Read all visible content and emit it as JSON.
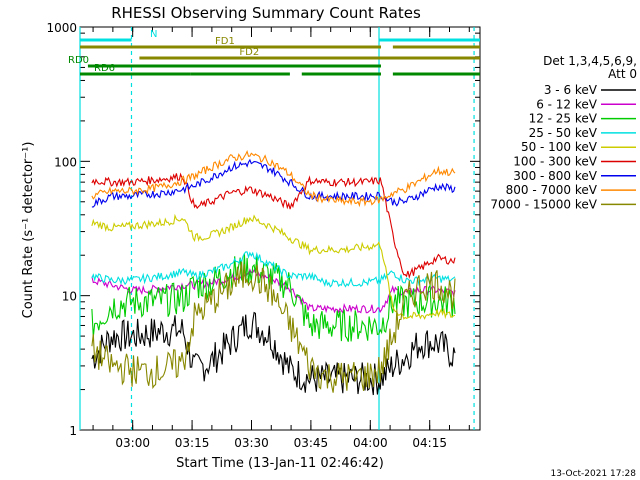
{
  "chart_data": {
    "type": "line",
    "title": "RHESSI Observing Summary Count Rates",
    "xlabel": "Start Time (13-Jan-11 02:46:42)",
    "ylabel": "Count Rate (s⁻¹ detector⁻¹)",
    "yscale": "log",
    "ylim": [
      1,
      1000
    ],
    "xlim_minutes_since_start": [
      0,
      101
    ],
    "x_ticks": [
      {
        "label": "03:00",
        "minute": 13.3
      },
      {
        "label": "03:15",
        "minute": 28.3
      },
      {
        "label": "03:30",
        "minute": 43.3
      },
      {
        "label": "03:45",
        "minute": 58.3
      },
      {
        "label": "04:00",
        "minute": 73.3
      },
      {
        "label": "04:15",
        "minute": 88.3
      }
    ],
    "y_ticks": [
      {
        "label": "1",
        "value": 1
      },
      {
        "label": "10",
        "value": 10
      },
      {
        "label": "100",
        "value": 100
      },
      {
        "label": "1000",
        "value": 1000
      }
    ],
    "legend_header": [
      "Det 1,3,4,5,6,9,",
      "Att 0"
    ],
    "legend_position": "right",
    "series": [
      {
        "name": "3 - 6 keV",
        "color": "#000000",
        "x": [
          3,
          8,
          13,
          17,
          21,
          26,
          29,
          33,
          38,
          43,
          48,
          53,
          58,
          62,
          67,
          72,
          76,
          79,
          82,
          86,
          90,
          95
        ],
        "y": [
          3.4,
          5,
          5,
          5.2,
          5.5,
          5.5,
          2.8,
          3.2,
          4.5,
          6.5,
          5,
          2.8,
          2.4,
          2.4,
          2.4,
          2.4,
          2.4,
          3,
          3.5,
          4.5,
          4.5,
          3.5
        ]
      },
      {
        "name": "6 - 12 keV",
        "color": "#cc00cc",
        "x": [
          3,
          8,
          13,
          17,
          21,
          26,
          29,
          33,
          38,
          43,
          48,
          53,
          58,
          62,
          67,
          72,
          76,
          79,
          82,
          86,
          90,
          95
        ],
        "y": [
          13,
          12,
          11,
          11,
          11.5,
          12,
          12,
          12.5,
          13.5,
          15,
          13.5,
          11.5,
          8,
          8,
          8,
          8,
          8,
          11,
          10.5,
          11,
          11,
          10.5
        ]
      },
      {
        "name": "12 - 25 keV",
        "color": "#00cc00",
        "x": [
          3,
          8,
          13,
          17,
          21,
          26,
          29,
          33,
          38,
          43,
          48,
          53,
          58,
          62,
          67,
          72,
          76,
          79,
          82,
          86,
          90,
          95
        ],
        "y": [
          6,
          8.5,
          9,
          9,
          9.2,
          9.5,
          12,
          12.5,
          15,
          16,
          14,
          12,
          6,
          6,
          6,
          6,
          6,
          9,
          8.8,
          9,
          9.2,
          9
        ]
      },
      {
        "name": "25 - 50 keV",
        "color": "#00e0e0",
        "x": [
          3,
          8,
          13,
          17,
          21,
          26,
          29,
          33,
          38,
          43,
          48,
          53,
          58,
          62,
          67,
          72,
          76,
          79,
          82,
          86,
          90,
          95
        ],
        "y": [
          14,
          13,
          13,
          13.5,
          14,
          15,
          14,
          15,
          17,
          21,
          17,
          14,
          14,
          12.5,
          12.5,
          12.5,
          13,
          15,
          13,
          13,
          13.5,
          13
        ]
      },
      {
        "name": "50 - 100 keV",
        "color": "#cccc00",
        "x": [
          3,
          8,
          13,
          17,
          21,
          26,
          29,
          33,
          38,
          43,
          48,
          53,
          58,
          62,
          67,
          72,
          76,
          79,
          82,
          86,
          90,
          95
        ],
        "y": [
          35,
          32,
          33,
          34,
          35,
          38,
          27,
          28,
          32,
          38,
          33,
          27,
          22,
          22,
          22,
          23,
          24,
          8,
          7,
          7,
          7.5,
          7
        ]
      },
      {
        "name": "100 - 300 keV",
        "color": "#dd0000",
        "x": [
          3,
          8,
          13,
          17,
          21,
          26,
          29,
          33,
          38,
          43,
          48,
          53,
          58,
          62,
          67,
          72,
          76,
          79,
          82,
          86,
          90,
          95
        ],
        "y": [
          72,
          70,
          70,
          72,
          74,
          78,
          45,
          50,
          58,
          62,
          55,
          46,
          72,
          70,
          70,
          70,
          72,
          28,
          14,
          16,
          19,
          18
        ]
      },
      {
        "name": "300 - 800 keV",
        "color": "#0000ee",
        "x": [
          3,
          8,
          13,
          17,
          21,
          26,
          29,
          33,
          38,
          43,
          48,
          53,
          58,
          62,
          67,
          72,
          76,
          79,
          82,
          86,
          90,
          95
        ],
        "y": [
          48,
          55,
          55,
          57,
          58,
          62,
          66,
          75,
          90,
          98,
          88,
          70,
          55,
          55,
          55,
          55,
          56,
          50,
          50,
          57,
          65,
          62
        ]
      },
      {
        "name": "800 - 7000 keV",
        "color": "#ff8800",
        "x": [
          3,
          8,
          13,
          17,
          21,
          26,
          29,
          33,
          38,
          43,
          48,
          53,
          58,
          62,
          67,
          72,
          76,
          79,
          82,
          86,
          90,
          95
        ],
        "y": [
          55,
          60,
          60,
          62,
          65,
          72,
          78,
          90,
          105,
          112,
          100,
          80,
          56,
          52,
          50,
          50,
          52,
          58,
          62,
          72,
          85,
          82
        ]
      },
      {
        "name": "7000 - 15000 keV",
        "color": "#888800",
        "x": [
          3,
          8,
          13,
          17,
          21,
          26,
          29,
          33,
          38,
          43,
          48,
          53,
          58,
          62,
          67,
          72,
          76,
          79,
          82,
          86,
          90,
          95
        ],
        "y": [
          4,
          3,
          2.8,
          2.7,
          2.8,
          3.2,
          7,
          9,
          12,
          15,
          11,
          6,
          3,
          2.5,
          2.5,
          2.5,
          2.8,
          5,
          9,
          12,
          12.5,
          10
        ]
      }
    ],
    "segments": [
      {
        "label": "N",
        "color": "#00e0e0",
        "ranges": [
          [
            0,
            13
          ]
        ],
        "level": 0
      },
      {
        "label": "FD1",
        "color": "#888800",
        "ranges": [
          [
            0,
            76
          ],
          [
            79,
            101
          ]
        ],
        "level": 1
      },
      {
        "label": "FD2",
        "color": "#888800",
        "ranges": [
          [
            15,
            101
          ]
        ],
        "level": 2
      },
      {
        "label": "RD0",
        "color": "#008800",
        "ranges": [
          [
            2,
            76
          ]
        ],
        "level": 3
      },
      {
        "label": "RD6",
        "color": "#008800",
        "ranges": [
          [
            0,
            28
          ],
          [
            28,
            53
          ],
          [
            56,
            76
          ],
          [
            79,
            101
          ]
        ],
        "level": 4
      }
    ],
    "n_band": {
      "label": "N",
      "color": "#00e0e0",
      "ranges": [
        [
          75.5,
          101
        ]
      ]
    },
    "vlines": [
      {
        "minute": 0,
        "color": "#00e0e0",
        "dashed": false
      },
      {
        "minute": 13,
        "color": "#00e0e0",
        "dashed": true
      },
      {
        "minute": 75.5,
        "color": "#00e0e0",
        "dashed": false
      },
      {
        "minute": 99.5,
        "color": "#00e0e0",
        "dashed": true
      }
    ],
    "footer": "13-Oct-2021 17:28",
    "grid": false
  }
}
